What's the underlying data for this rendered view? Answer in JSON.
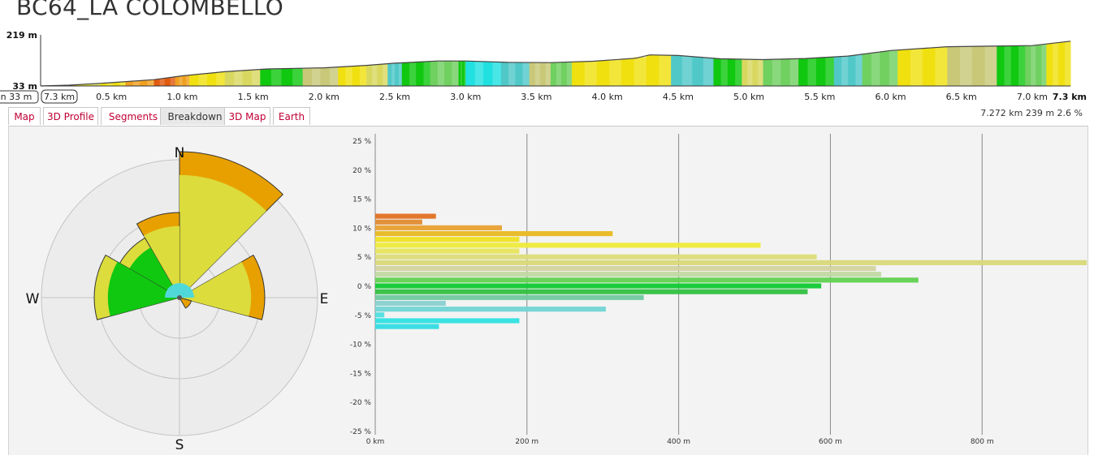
{
  "title": "BC64_LA COLOMBELLO",
  "profile": {
    "elev_max_label": "219 m",
    "elev_min_label": "33 m",
    "elev_max": 219,
    "elev_min": 33,
    "range_start_label": "n 33 m",
    "range_end_label": "7.3 km",
    "km_labels": [
      "0.5 km",
      "1.0 km",
      "1.5 km",
      "2.0 km",
      "2.5 km",
      "3.0 km",
      "3.5 km",
      "4.0 km",
      "4.5 km",
      "5.0 km",
      "5.5 km",
      "6.0 km",
      "6.5 km",
      "7.0 km"
    ],
    "km_values": [
      0.5,
      1.0,
      1.5,
      2.0,
      2.5,
      3.0,
      3.5,
      4.0,
      4.5,
      5.0,
      5.5,
      6.0,
      6.5,
      7.0
    ],
    "end_label": "7.3 km",
    "total_km": 7.27,
    "points": [
      [
        0,
        33
      ],
      [
        0.2,
        36
      ],
      [
        0.5,
        45
      ],
      [
        0.8,
        56
      ],
      [
        1.0,
        70
      ],
      [
        1.3,
        85
      ],
      [
        1.6,
        95
      ],
      [
        2.0,
        99
      ],
      [
        2.3,
        108
      ],
      [
        2.5,
        116
      ],
      [
        2.8,
        124
      ],
      [
        3.0,
        124
      ],
      [
        3.3,
        119
      ],
      [
        3.6,
        118
      ],
      [
        3.9,
        123
      ],
      [
        4.2,
        134
      ],
      [
        4.3,
        146
      ],
      [
        4.5,
        144
      ],
      [
        4.8,
        132
      ],
      [
        5.1,
        129
      ],
      [
        5.4,
        133
      ],
      [
        5.7,
        142
      ],
      [
        6.0,
        162
      ],
      [
        6.4,
        176
      ],
      [
        6.7,
        178
      ],
      [
        7.0,
        180
      ],
      [
        7.27,
        196
      ]
    ],
    "colors": {
      "red": "#e05a10",
      "orange": "#f0a020",
      "yellow": "#f0e010",
      "olive": "#d8d860",
      "khaki": "#c8c878",
      "green": "#10c810",
      "lightgreen": "#70d060",
      "cyan": "#20e0e0",
      "teal": "#50c8c8"
    }
  },
  "tabs": [
    {
      "label": "Map",
      "active": false
    },
    {
      "label": "3D Profile",
      "active": false
    },
    {
      "label": "Segments",
      "active": false
    },
    {
      "label": "Breakdown",
      "active": true
    },
    {
      "label": "3D Map",
      "active": false
    },
    {
      "label": "Earth",
      "active": false
    }
  ],
  "stats": "7.272 km 239 m 2.6 %",
  "rose": {
    "N": "N",
    "E": "E",
    "S": "S",
    "W": "W",
    "sectors": [
      {
        "start": 0,
        "end": 45,
        "r": 180,
        "colors": [
          "#e8a000",
          "#dcdc3c"
        ]
      },
      {
        "start": -30,
        "end": 0,
        "r": 105,
        "colors": [
          "#e8a000",
          "#dcdc3c"
        ]
      },
      {
        "start": -60,
        "end": -30,
        "r": 85,
        "colors": [
          "#dcdc3c",
          "#10c810"
        ]
      },
      {
        "start": -105,
        "end": -60,
        "r": 105,
        "colors": [
          "#dcdc3c",
          "#10c810"
        ]
      },
      {
        "start": 60,
        "end": 105,
        "r": 105,
        "colors": [
          "#e8a000",
          "#dcdc3c"
        ]
      },
      {
        "start": 105,
        "end": 150,
        "r": 15,
        "colors": [
          "#e8a000"
        ]
      }
    ]
  },
  "chart_data": {
    "type": "bar",
    "orientation": "horizontal",
    "x_unit": "m",
    "x_ticks": [
      "0 km",
      "200 m",
      "400 m",
      "600 m",
      "800 m"
    ],
    "x_tick_values": [
      0,
      200,
      400,
      600,
      800
    ],
    "y_ticks": [
      "25 %",
      "20 %",
      "15 %",
      "10 %",
      "5 %",
      "0 %",
      "-5 %",
      "-10 %",
      "-15 %",
      "-20 %",
      "-25 %"
    ],
    "y_tick_values": [
      25,
      20,
      15,
      10,
      5,
      0,
      -5,
      -10,
      -15,
      -20,
      -25
    ],
    "xlim": [
      0,
      940
    ],
    "ylim": [
      -25,
      25
    ],
    "bars": [
      {
        "grade": 12,
        "value": 80,
        "color": "#e07020"
      },
      {
        "grade": 11,
        "value": 62,
        "color": "#e08a30"
      },
      {
        "grade": 10,
        "value": 167,
        "color": "#e8a030"
      },
      {
        "grade": 9,
        "value": 313,
        "color": "#e8b820"
      },
      {
        "grade": 8,
        "value": 190,
        "color": "#f0e020"
      },
      {
        "grade": 7,
        "value": 508,
        "color": "#eeea3a"
      },
      {
        "grade": 6,
        "value": 190,
        "color": "#e6e45a"
      },
      {
        "grade": 5,
        "value": 582,
        "color": "#dcdc78"
      },
      {
        "grade": 4,
        "value": 938,
        "color": "#d8d878"
      },
      {
        "grade": 3,
        "value": 660,
        "color": "#d2d2a0"
      },
      {
        "grade": 2,
        "value": 667,
        "color": "#c0d8a0"
      },
      {
        "grade": 1,
        "value": 716,
        "color": "#60d050"
      },
      {
        "grade": 0,
        "value": 588,
        "color": "#10c830"
      },
      {
        "grade": -1,
        "value": 570,
        "color": "#30c040"
      },
      {
        "grade": -2,
        "value": 354,
        "color": "#70c8a0"
      },
      {
        "grade": -3,
        "value": 93,
        "color": "#88d0d0"
      },
      {
        "grade": -4,
        "value": 304,
        "color": "#70d4d4"
      },
      {
        "grade": -5,
        "value": 12,
        "color": "#50dede"
      },
      {
        "grade": -6,
        "value": 190,
        "color": "#30e0e0"
      },
      {
        "grade": -7,
        "value": 84,
        "color": "#30dce0"
      }
    ]
  }
}
